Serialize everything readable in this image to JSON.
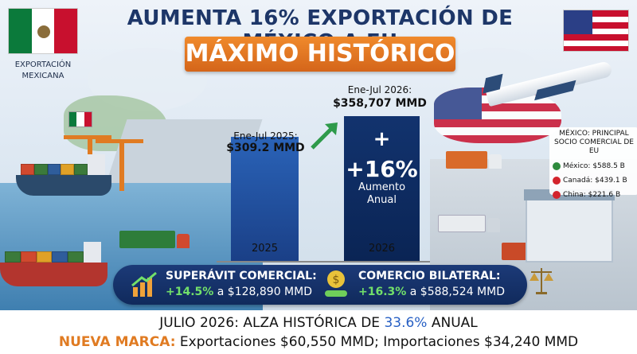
{
  "header": {
    "title": "AUMENTA 16% EXPORTACIÓN DE MÉXICO A EU",
    "subtitle": "MÁXIMO HISTÓRICO",
    "export_label": "EXPORTACIÓN MEXICANA"
  },
  "chart_data": {
    "type": "bar",
    "categories": [
      "2025",
      "2026"
    ],
    "values": [
      309.2,
      358.707
    ],
    "period_labels": [
      "Ene-Jul 2025:",
      "Ene-Jul 2026:"
    ],
    "value_labels": [
      "$309.2 MMD",
      "$358,707 MMD"
    ],
    "increase_plus": "+",
    "increase_pct": "+16%",
    "increase_text_1": "Aumento",
    "increase_text_2": "Anual",
    "ylim": [
      0,
      400
    ]
  },
  "partner": {
    "heading_1": "MÉXICO: PRINCIPAL",
    "heading_2": "SOCIO COMERCIAL DE EU",
    "rows": [
      {
        "label": "México: $588.5 B",
        "color": "#2e8b3d"
      },
      {
        "label": "Canadá: $439.1 B",
        "color": "#d3242c"
      },
      {
        "label": "China: $221.6 B",
        "color": "#d3242c"
      }
    ]
  },
  "metrics": {
    "surplus_label": "SUPERÁVIT COMERCIAL:",
    "surplus_pct": "+14.5%",
    "surplus_value": "a $128,890 MMD",
    "bilateral_label": "COMERCIO BILATERAL:",
    "bilateral_pct": "+16.3%",
    "bilateral_value": "a $588,524 MMD"
  },
  "footer": {
    "line1_a": "JULIO 2026: ALZA HISTÓRICA DE ",
    "line1_pct": "33.6%",
    "line1_b": " ANUAL",
    "line2_a": "NUEVA MARCA:",
    "line2_b": " Exportaciones $60,550 MMD; Importaciones $34,240 MMD"
  },
  "colors": {
    "accent_orange": "#e07b22",
    "navy": "#1d3668",
    "green": "#72e06a",
    "blue_highlight": "#2860c4"
  },
  "icons": [
    "mexico-flag-icon",
    "usa-flag-icon",
    "trend-up-icon",
    "money-hand-icon",
    "scale-icon",
    "airplane-icon",
    "cargo-ship-icon",
    "truck-icon"
  ]
}
